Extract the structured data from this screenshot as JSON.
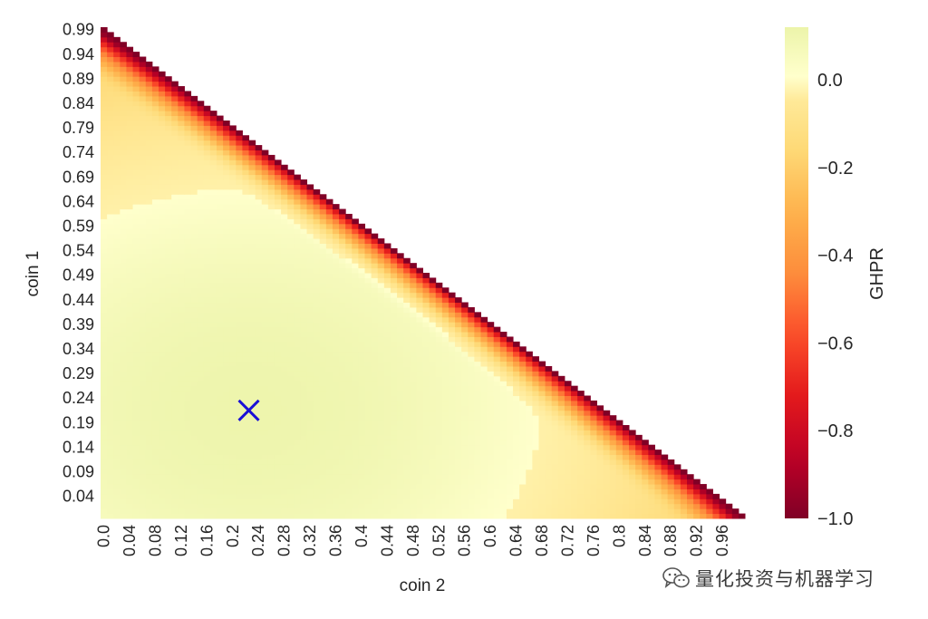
{
  "chart_data": {
    "type": "heatmap",
    "title": "",
    "xlabel": "coin 2",
    "ylabel": "coin 1",
    "x_ticks": [
      "0.0",
      "0.04",
      "0.08",
      "0.12",
      "0.16",
      "0.2",
      "0.24",
      "0.28",
      "0.32",
      "0.36",
      "0.4",
      "0.44",
      "0.48",
      "0.52",
      "0.56",
      "0.6",
      "0.64",
      "0.68",
      "0.72",
      "0.76",
      "0.8",
      "0.84",
      "0.88",
      "0.92",
      "0.96"
    ],
    "y_ticks": [
      "0.99",
      "0.94",
      "0.89",
      "0.84",
      "0.79",
      "0.74",
      "0.69",
      "0.64",
      "0.59",
      "0.54",
      "0.49",
      "0.44",
      "0.39",
      "0.34",
      "0.29",
      "0.24",
      "0.19",
      "0.14",
      "0.09",
      "0.04"
    ],
    "x_range": [
      0.0,
      1.0
    ],
    "y_range": [
      0.0,
      1.0
    ],
    "grid_step": 0.01,
    "mask": "upper-triangle (coin 1 + coin 2 > 1 not shown)",
    "optimum_marker": {
      "coin_2": 0.23,
      "coin_1": 0.22,
      "symbol": "x",
      "color": "#1a10d6"
    },
    "colorbar": {
      "label": "GHPR",
      "colormap": "YlOrRd_r",
      "range": [
        -1.0,
        0.12
      ],
      "ticks": [
        "0.0",
        "−0.2",
        "−0.4",
        "−0.6",
        "−0.8",
        "−1.0"
      ],
      "tick_values": [
        0.0,
        -0.2,
        -0.4,
        -0.6,
        -0.8,
        -1.0
      ]
    }
  },
  "watermark": {
    "icon": "wechat-icon",
    "text": "量化投资与机器学习"
  }
}
